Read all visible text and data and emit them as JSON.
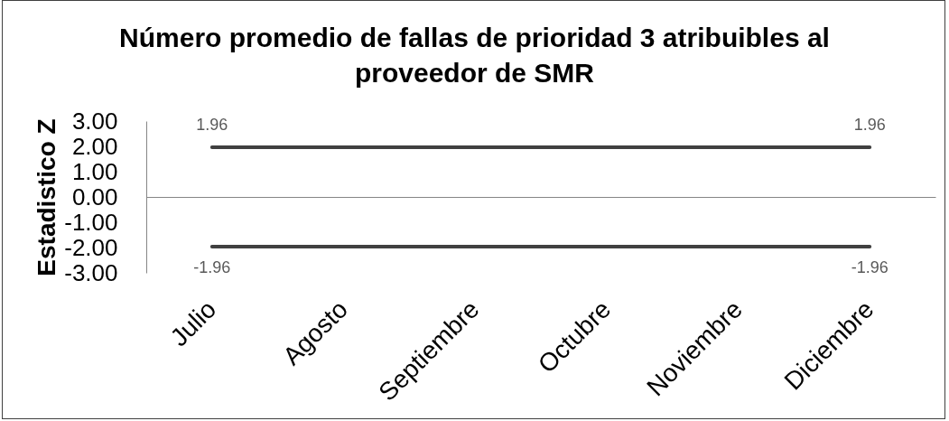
{
  "chart_data": {
    "type": "line",
    "title": "Número promedio de fallas de prioridad 3 atribuibles al proveedor de SMR",
    "ylabel": "Estadistico Z",
    "categories": [
      "Julio",
      "Agosto",
      "Septiembre",
      "Octubre",
      "Noviembre",
      "Diciembre"
    ],
    "series": [
      {
        "color": "#404040",
        "values": [
          1.96,
          1.96,
          1.96,
          1.96,
          1.96,
          1.96
        ],
        "value_labels": [
          "1.96",
          null,
          null,
          null,
          null,
          "1.96"
        ]
      },
      {
        "color": "#404040",
        "values": [
          -1.96,
          -1.96,
          -1.96,
          -1.96,
          -1.96,
          -1.96
        ],
        "value_labels": [
          "-1.96",
          null,
          null,
          null,
          null,
          "-1.96"
        ]
      }
    ],
    "ylim": [
      -3,
      3
    ],
    "yticks": [
      {
        "value": 3,
        "label": "3.00"
      },
      {
        "value": 2,
        "label": "2.00"
      },
      {
        "value": 1,
        "label": "1.00"
      },
      {
        "value": 0,
        "label": "0.00"
      },
      {
        "value": -1,
        "label": "-1.00"
      },
      {
        "value": -2,
        "label": "-2.00"
      },
      {
        "value": -3,
        "label": "-3.00"
      }
    ]
  }
}
